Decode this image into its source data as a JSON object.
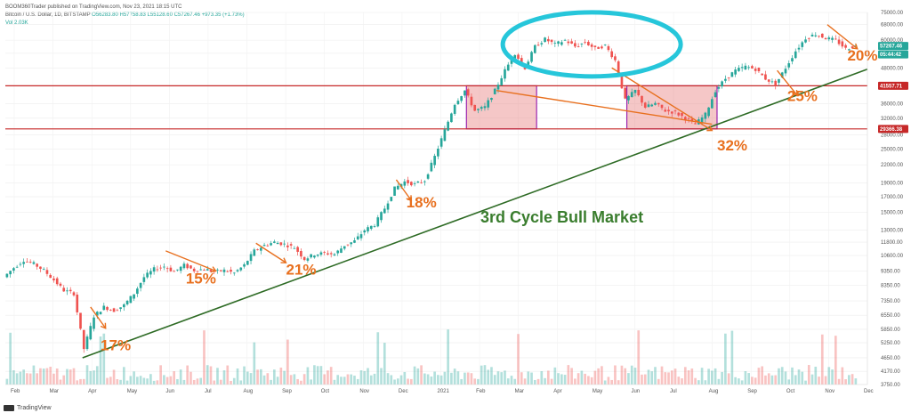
{
  "header": {
    "publisher": "BOOM360Trader published on TradingView.com, Nov 23, 2021 18:15 UTC",
    "symbol": "Bitcoin / U.S. Dollar, 1D, BITSTAMP",
    "ohlc": "O56283.80 H57758.83 L55128.60 C57267.46 +973.35 (+1.73%)",
    "volume": "Vol 2.03K"
  },
  "footer": {
    "brand": "TradingView"
  },
  "colors": {
    "up": "#26a69a",
    "down": "#ef5350",
    "level_line": "#c62828",
    "trend_line": "#2e6b25",
    "arrow": "#e8701f",
    "box_fill": "#e57373",
    "box_border": "#9c27b0",
    "circle": "#26c6da"
  },
  "chart_data": {
    "type": "candlestick",
    "scale": "log",
    "y_ticks": [
      75000,
      68000,
      60000,
      54000,
      48000,
      41557.71,
      36000,
      32000,
      28000,
      25000,
      22000,
      19000,
      17000,
      15000,
      13000,
      11800,
      10600,
      9350,
      8350,
      7350,
      6550,
      5850,
      5250,
      4650,
      4170,
      3750
    ],
    "y_tick_labels": [
      "75000.00",
      "68000.00",
      "60000.00",
      "54000.00",
      "48000.00",
      "",
      "36000.00",
      "32000.00",
      "28000.00",
      "25000.00",
      "22000.00",
      "19000.00",
      "17000.00",
      "15000.00",
      "13000.00",
      "11800.00",
      "10600.00",
      "9350.00",
      "8350.00",
      "7350.00",
      "6550.00",
      "5850.00",
      "5250.00",
      "4650.00",
      "4170.00",
      "3750.00"
    ],
    "x_ticks": [
      "Feb",
      "Mar",
      "Apr",
      "May",
      "Jun",
      "Jul",
      "Aug",
      "Sep",
      "Oct",
      "Nov",
      "Dec",
      "2021",
      "Feb",
      "Mar",
      "Apr",
      "May",
      "Jun",
      "Jul",
      "Aug",
      "Sep",
      "Oct",
      "Nov",
      "Dec"
    ],
    "price_path": [
      [
        0,
        8900
      ],
      [
        1,
        9600
      ],
      [
        2,
        10200
      ],
      [
        3,
        9900
      ],
      [
        4,
        9400
      ],
      [
        5,
        8700
      ],
      [
        6,
        8000
      ],
      [
        7,
        7800
      ],
      [
        8,
        5000
      ],
      [
        9,
        6500
      ],
      [
        10,
        7000
      ],
      [
        11,
        6800
      ],
      [
        12,
        7100
      ],
      [
        13,
        7800
      ],
      [
        14,
        8900
      ],
      [
        15,
        9500
      ],
      [
        16,
        9700
      ],
      [
        17,
        9300
      ],
      [
        18,
        9800
      ],
      [
        19,
        9400
      ],
      [
        20,
        9500
      ],
      [
        21,
        9300
      ],
      [
        22,
        9400
      ],
      [
        23,
        9200
      ],
      [
        24,
        9800
      ],
      [
        25,
        11000
      ],
      [
        26,
        11500
      ],
      [
        27,
        11800
      ],
      [
        28,
        11600
      ],
      [
        29,
        11300
      ],
      [
        30,
        10300
      ],
      [
        31,
        10700
      ],
      [
        32,
        10800
      ],
      [
        33,
        10700
      ],
      [
        34,
        11500
      ],
      [
        35,
        11900
      ],
      [
        36,
        13000
      ],
      [
        37,
        13600
      ],
      [
        38,
        15500
      ],
      [
        39,
        18200
      ],
      [
        40,
        19200
      ],
      [
        41,
        18800
      ],
      [
        42,
        19400
      ],
      [
        43,
        23500
      ],
      [
        44,
        29000
      ],
      [
        45,
        36000
      ],
      [
        46,
        40000
      ],
      [
        47,
        34000
      ],
      [
        48,
        35000
      ],
      [
        49,
        40000
      ],
      [
        50,
        47000
      ],
      [
        51,
        54000
      ],
      [
        52,
        48000
      ],
      [
        53,
        57000
      ],
      [
        54,
        60500
      ],
      [
        55,
        58000
      ],
      [
        56,
        60000
      ],
      [
        57,
        57000
      ],
      [
        58,
        59000
      ],
      [
        59,
        56000
      ],
      [
        60,
        57500
      ],
      [
        61,
        51000
      ],
      [
        62,
        37000
      ],
      [
        63,
        40000
      ],
      [
        64,
        35000
      ],
      [
        65,
        36000
      ],
      [
        66,
        34000
      ],
      [
        67,
        33500
      ],
      [
        68,
        32000
      ],
      [
        69,
        30500
      ],
      [
        70,
        33000
      ],
      [
        71,
        40000
      ],
      [
        72,
        44000
      ],
      [
        73,
        47000
      ],
      [
        74,
        48500
      ],
      [
        75,
        47500
      ],
      [
        76,
        44000
      ],
      [
        77,
        42000
      ],
      [
        78,
        48000
      ],
      [
        79,
        55000
      ],
      [
        80,
        61000
      ],
      [
        81,
        63000
      ],
      [
        82,
        61000
      ],
      [
        83,
        60000
      ],
      [
        84,
        56000
      ],
      [
        85,
        57300
      ]
    ],
    "levels": [
      41557.71,
      29366.38
    ],
    "level_labels": [
      "41557.71",
      "29366.38"
    ],
    "current_price": 57267.46,
    "current_price_label": "57267.46",
    "countdown_label": "05:44:42",
    "annotations": [
      {
        "text": "17%",
        "x_day": 9.5,
        "y": 4950
      },
      {
        "text": "15%",
        "x_day": 18.0,
        "y": 8450
      },
      {
        "text": "21%",
        "x_day": 28.0,
        "y": 9100
      },
      {
        "text": "18%",
        "x_day": 40.0,
        "y": 15600
      },
      {
        "text": "32%",
        "x_day": 71.0,
        "y": 24700
      },
      {
        "text": "25%",
        "x_day": 78.0,
        "y": 36800
      },
      {
        "text": "20%",
        "x_day": 84.0,
        "y": 51000
      }
    ],
    "label_main": "3rd Cycle Bull Market"
  }
}
